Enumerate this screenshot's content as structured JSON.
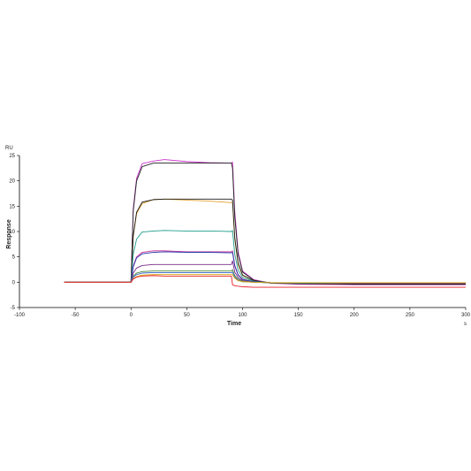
{
  "chart_data": {
    "type": "line",
    "title": "",
    "xlabel": "Time",
    "ylabel": "Response",
    "x_unit": "s",
    "y_unit": "RU",
    "xlim": [
      -100,
      300
    ],
    "ylim": [
      -5,
      25
    ],
    "x_ticks": [
      -100,
      -50,
      0,
      50,
      100,
      150,
      200,
      250,
      300
    ],
    "y_ticks": [
      -5,
      0,
      5,
      10,
      15,
      20,
      25
    ],
    "grid": false,
    "legend": "none",
    "time_points": [
      -60,
      -30,
      0,
      2,
      5,
      10,
      20,
      30,
      50,
      70,
      90,
      91,
      93,
      96,
      100,
      110,
      125,
      150,
      200,
      250,
      300
    ],
    "series": [
      {
        "color": "#cc33cc",
        "values": [
          0,
          0,
          0,
          14.5,
          20.5,
          23.4,
          23.9,
          24.2,
          23.8,
          23.6,
          23.5,
          23.7,
          14.0,
          6.0,
          2.2,
          0.5,
          -0.2,
          -0.4,
          -0.5,
          -0.5,
          -0.5
        ]
      },
      {
        "color": "#222222",
        "values": [
          0,
          0,
          0,
          14.0,
          20.0,
          22.8,
          23.5,
          23.5,
          23.5,
          23.5,
          23.5,
          22.5,
          13.0,
          5.5,
          2.0,
          0.4,
          -0.2,
          -0.3,
          -0.4,
          -0.4,
          -0.4
        ]
      },
      {
        "color": "#e0a030",
        "values": [
          0,
          0,
          0,
          9.0,
          13.5,
          15.5,
          16.3,
          16.4,
          16.2,
          16.0,
          15.7,
          15.8,
          8.5,
          3.5,
          1.3,
          0.3,
          -0.1,
          -0.2,
          -0.3,
          -0.3,
          -0.3
        ]
      },
      {
        "color": "#1a1a1a",
        "values": [
          0,
          0,
          0,
          9.2,
          13.8,
          15.8,
          16.3,
          16.4,
          16.4,
          16.4,
          16.4,
          16.2,
          8.8,
          3.8,
          1.4,
          0.3,
          -0.1,
          -0.2,
          -0.3,
          -0.3,
          -0.3
        ]
      },
      {
        "color": "#1f9d8e",
        "values": [
          0,
          0,
          0,
          5.5,
          8.5,
          9.9,
          10.1,
          10.2,
          10.1,
          10.1,
          10.0,
          10.2,
          5.5,
          2.4,
          0.9,
          0.2,
          -0.1,
          -0.2,
          -0.2,
          -0.2,
          -0.2
        ]
      },
      {
        "color": "#cc3399",
        "values": [
          0,
          0,
          0,
          3.2,
          5.0,
          5.9,
          6.2,
          6.2,
          6.0,
          6.0,
          6.0,
          6.2,
          3.4,
          1.5,
          0.6,
          0.1,
          -0.1,
          -0.1,
          -0.2,
          -0.2,
          -0.2
        ]
      },
      {
        "color": "#2233aa",
        "values": [
          0,
          0,
          0,
          3.0,
          4.8,
          5.6,
          5.9,
          6.0,
          5.9,
          5.9,
          5.8,
          5.9,
          3.2,
          1.4,
          0.5,
          0.1,
          -0.1,
          -0.1,
          -0.1,
          -0.1,
          -0.1
        ]
      },
      {
        "color": "#7a2a8a",
        "values": [
          0,
          0,
          0,
          1.8,
          2.8,
          3.3,
          3.5,
          3.5,
          3.5,
          3.5,
          3.5,
          4.2,
          2.0,
          0.9,
          0.3,
          0.0,
          -0.1,
          -0.1,
          -0.1,
          -0.1,
          -0.1
        ]
      },
      {
        "color": "#4a8a3a",
        "values": [
          0,
          0,
          0,
          1.2,
          1.8,
          2.1,
          2.2,
          2.2,
          2.2,
          2.2,
          2.2,
          2.5,
          1.3,
          0.6,
          0.2,
          0.0,
          -0.1,
          -0.1,
          -0.1,
          -0.1,
          -0.1
        ]
      },
      {
        "color": "#3366cc",
        "values": [
          0,
          0,
          0,
          1.0,
          1.5,
          1.8,
          1.9,
          1.9,
          1.9,
          1.9,
          1.9,
          2.0,
          1.0,
          0.4,
          0.1,
          0.0,
          -0.1,
          -0.1,
          -0.1,
          -0.1,
          -0.1
        ]
      },
      {
        "color": "#d6a000",
        "values": [
          0,
          0,
          0,
          0.7,
          1.1,
          1.4,
          1.5,
          1.5,
          1.5,
          1.5,
          1.5,
          1.5,
          0.8,
          0.3,
          0.1,
          0.0,
          -0.1,
          -0.1,
          -0.1,
          -0.1,
          -0.1
        ]
      },
      {
        "color": "#e8202a",
        "values": [
          0,
          0,
          0,
          0.6,
          1.0,
          1.2,
          1.3,
          1.2,
          1.2,
          1.2,
          1.2,
          -0.5,
          -0.7,
          -0.8,
          -0.9,
          -1.0,
          -1.0,
          -1.0,
          -1.0,
          -1.0,
          -1.0
        ]
      }
    ]
  }
}
